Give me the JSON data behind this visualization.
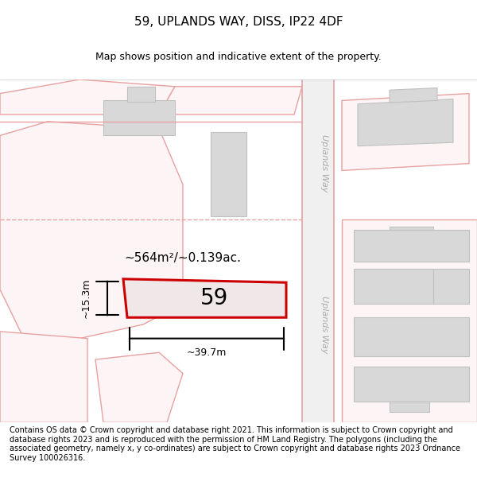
{
  "title": "59, UPLANDS WAY, DISS, IP22 4DF",
  "subtitle": "Map shows position and indicative extent of the property.",
  "footer": "Contains OS data © Crown copyright and database right 2021. This information is subject to Crown copyright and database rights 2023 and is reproduced with the permission of HM Land Registry. The polygons (including the associated geometry, namely x, y co-ordinates) are subject to Crown copyright and database rights 2023 Ordnance Survey 100026316.",
  "area_label": "~564m²/~0.139ac.",
  "width_label": "~39.7m",
  "height_label": "~15.3m",
  "plot_number": "59",
  "background_color": "#ffffff",
  "map_background": "#f7f7f7",
  "road_line_color": "#e8a0a0",
  "building_fill": "#d8d8d8",
  "building_edge": "#c0c0c0",
  "highlight_fill": "#f0e8e8",
  "highlight_edge": "#cc0000",
  "road_label_color": "#aaaaaa",
  "title_fontsize": 11,
  "subtitle_fontsize": 9,
  "footer_fontsize": 7,
  "annotation_fontsize": 11,
  "plot_label_fontsize": 20
}
